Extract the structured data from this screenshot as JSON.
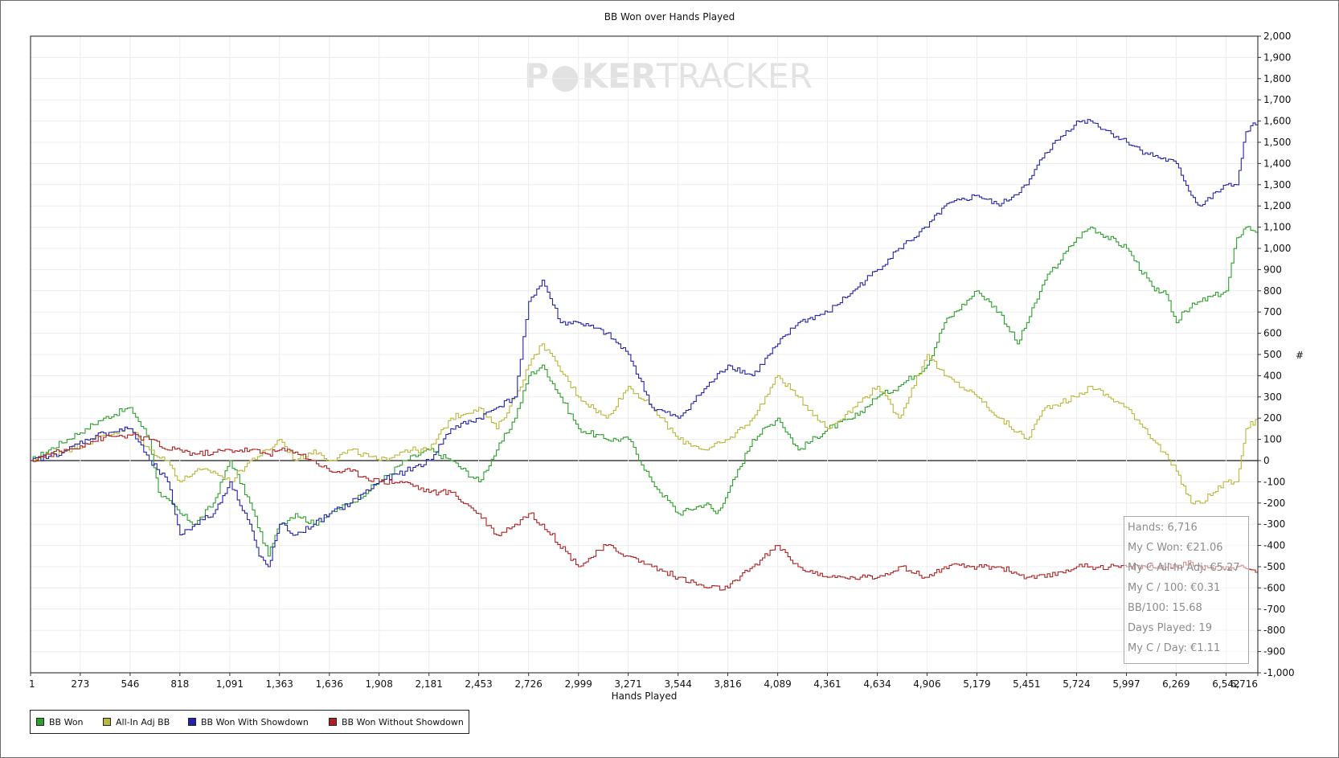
{
  "chart_data": {
    "type": "line",
    "title": "BB Won over Hands Played",
    "xlabel": "Hands Played",
    "ylabel": "",
    "watermark": {
      "part1": "P",
      "part2": "KER",
      "part3": "TRACKER"
    },
    "xlim": [
      1,
      6716
    ],
    "ylim": [
      -1000,
      2000
    ],
    "x_ticks": [
      1,
      273,
      546,
      818,
      1091,
      1363,
      1636,
      1908,
      2181,
      2453,
      2726,
      2999,
      3271,
      3544,
      3816,
      4089,
      4361,
      4634,
      4906,
      5179,
      5451,
      5724,
      5997,
      6269,
      6542,
      6716
    ],
    "x_tick_labels": [
      "1",
      "273",
      "546",
      "818",
      "1,091",
      "1,363",
      "1,636",
      "1,908",
      "2,181",
      "2,453",
      "2,726",
      "2,999",
      "3,271",
      "3,544",
      "3,816",
      "4,089",
      "4,361",
      "4,634",
      "4,906",
      "5,179",
      "5,451",
      "5,724",
      "5,997",
      "6,269",
      "6,542",
      "6,716"
    ],
    "y_ticks": [
      2000,
      1900,
      1800,
      1700,
      1600,
      1500,
      1400,
      1300,
      1200,
      1100,
      1000,
      900,
      800,
      700,
      600,
      500,
      400,
      300,
      200,
      100,
      0,
      -100,
      -200,
      -300,
      -400,
      -500,
      -600,
      -700,
      -800,
      -900,
      -1000
    ],
    "y_tick_labels": [
      "2,000",
      "1,900",
      "1,800",
      "1,700",
      "1,600",
      "1,500",
      "1,400",
      "1,300",
      "1,200",
      "1,100",
      "1,000",
      "900",
      "800",
      "700",
      "600",
      "500",
      "400",
      "300",
      "200",
      "100",
      "0",
      "-100",
      "-200",
      "-300",
      "-400",
      "-500",
      "-600",
      "-700",
      "-800",
      "-900",
      "-1,000"
    ],
    "grid": true,
    "legend_position": "bottom-left",
    "series": [
      {
        "name": "BB Won",
        "color": "#2ca02c",
        "x": [
          1,
          100,
          200,
          300,
          400,
          546,
          650,
          700,
          818,
          900,
          1000,
          1091,
          1200,
          1300,
          1363,
          1450,
          1550,
          1636,
          1750,
          1908,
          2050,
          2181,
          2300,
          2453,
          2550,
          2650,
          2726,
          2800,
          2999,
          3150,
          3271,
          3400,
          3544,
          3700,
          3750,
          3816,
          3950,
          4089,
          4200,
          4361,
          4500,
          4634,
          4750,
          4906,
          5000,
          5179,
          5300,
          5400,
          5451,
          5550,
          5724,
          5800,
          5997,
          6150,
          6200,
          6269,
          6300,
          6400,
          6542,
          6600,
          6650,
          6716
        ],
        "y": [
          0,
          50,
          100,
          150,
          200,
          250,
          100,
          -150,
          -250,
          -300,
          -200,
          0,
          -200,
          -450,
          -300,
          -250,
          -300,
          -250,
          -200,
          -100,
          0,
          50,
          0,
          -100,
          50,
          200,
          400,
          450,
          150,
          100,
          100,
          -100,
          -250,
          -200,
          -250,
          -150,
          100,
          200,
          50,
          150,
          200,
          300,
          350,
          450,
          650,
          800,
          700,
          550,
          650,
          850,
          1050,
          1100,
          1000,
          800,
          800,
          650,
          700,
          750,
          800,
          1050,
          1100,
          1080
        ]
      },
      {
        "name": "All-In Adj BB",
        "color": "#b8b83a",
        "x": [
          1,
          100,
          200,
          300,
          400,
          546,
          650,
          750,
          818,
          900,
          1000,
          1091,
          1200,
          1300,
          1363,
          1450,
          1550,
          1636,
          1750,
          1908,
          2050,
          2181,
          2300,
          2453,
          2550,
          2650,
          2726,
          2800,
          2999,
          3150,
          3271,
          3400,
          3544,
          3700,
          3816,
          3950,
          4089,
          4200,
          4361,
          4500,
          4634,
          4750,
          4906,
          5000,
          5179,
          5300,
          5451,
          5550,
          5724,
          5800,
          5997,
          6100,
          6269,
          6350,
          6400,
          6542,
          6600,
          6650,
          6716
        ],
        "y": [
          0,
          30,
          50,
          80,
          120,
          150,
          50,
          0,
          -100,
          -50,
          -50,
          -100,
          0,
          50,
          100,
          0,
          50,
          0,
          50,
          0,
          50,
          50,
          200,
          250,
          150,
          300,
          450,
          550,
          300,
          200,
          350,
          250,
          100,
          50,
          100,
          200,
          400,
          300,
          150,
          250,
          350,
          200,
          500,
          400,
          300,
          200,
          100,
          250,
          300,
          350,
          250,
          150,
          -50,
          -200,
          -200,
          -100,
          -100,
          150,
          200
        ]
      },
      {
        "name": "BB Won With Showdown",
        "color": "#2323b0",
        "x": [
          1,
          100,
          200,
          300,
          400,
          546,
          650,
          750,
          818,
          900,
          1000,
          1091,
          1200,
          1250,
          1300,
          1363,
          1450,
          1550,
          1636,
          1750,
          1908,
          2050,
          2181,
          2300,
          2453,
          2550,
          2650,
          2726,
          2800,
          2900,
          2999,
          3150,
          3271,
          3400,
          3544,
          3700,
          3816,
          3950,
          4089,
          4200,
          4361,
          4500,
          4634,
          4750,
          4906,
          5000,
          5179,
          5300,
          5451,
          5550,
          5724,
          5800,
          5997,
          6100,
          6269,
          6350,
          6400,
          6542,
          6600,
          6650,
          6716
        ],
        "y": [
          0,
          20,
          50,
          100,
          130,
          150,
          0,
          -100,
          -350,
          -300,
          -250,
          -100,
          -300,
          -450,
          -500,
          -300,
          -350,
          -300,
          -250,
          -200,
          -100,
          -50,
          0,
          150,
          200,
          250,
          300,
          750,
          850,
          650,
          650,
          600,
          500,
          250,
          200,
          350,
          450,
          400,
          550,
          650,
          700,
          800,
          900,
          1000,
          1100,
          1200,
          1250,
          1200,
          1300,
          1450,
          1600,
          1600,
          1500,
          1450,
          1400,
          1250,
          1200,
          1300,
          1300,
          1550,
          1600
        ]
      },
      {
        "name": "BB Won Without Showdown",
        "color": "#b02020",
        "x": [
          1,
          100,
          200,
          300,
          400,
          546,
          650,
          750,
          818,
          900,
          1000,
          1091,
          1200,
          1300,
          1363,
          1450,
          1550,
          1636,
          1750,
          1908,
          2050,
          2181,
          2300,
          2453,
          2550,
          2650,
          2726,
          2800,
          2999,
          3150,
          3271,
          3400,
          3544,
          3700,
          3816,
          3950,
          4089,
          4200,
          4361,
          4500,
          4634,
          4750,
          4906,
          5000,
          5179,
          5300,
          5451,
          5550,
          5724,
          5800,
          5997,
          6100,
          6269,
          6350,
          6400,
          6542,
          6600,
          6650,
          6716
        ],
        "y": [
          0,
          30,
          50,
          80,
          110,
          120,
          100,
          50,
          50,
          30,
          40,
          50,
          50,
          30,
          50,
          40,
          0,
          -50,
          -50,
          -100,
          -100,
          -150,
          -150,
          -250,
          -350,
          -300,
          -250,
          -300,
          -500,
          -400,
          -450,
          -500,
          -550,
          -600,
          -600,
          -500,
          -400,
          -500,
          -550,
          -550,
          -550,
          -500,
          -550,
          -500,
          -500,
          -500,
          -550,
          -550,
          -500,
          -500,
          -500,
          -500,
          -500,
          -480,
          -500,
          -500,
          -500,
          -510,
          -520
        ]
      }
    ]
  },
  "info_box": {
    "lines": [
      "Hands: 6,716",
      "My C Won: €21.06",
      "My C All-In Adj: €5.27",
      "My C / 100: €0.31",
      "BB/100: 15.68",
      "Days Played: 19",
      "My C / Day: €1.11"
    ]
  },
  "y_axis_right_symbol": "#"
}
